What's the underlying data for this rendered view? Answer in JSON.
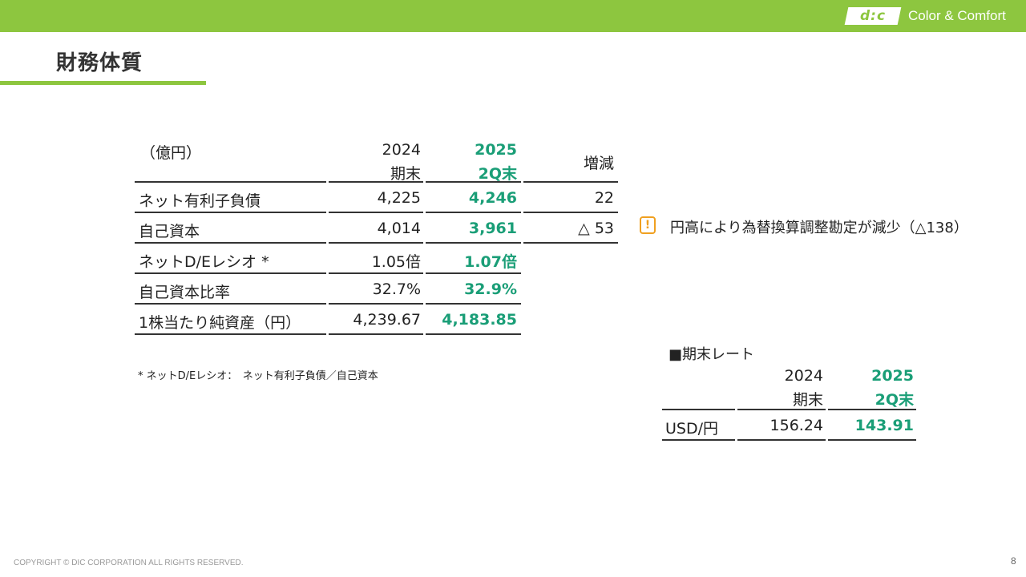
{
  "header": {
    "logo_text": "d:c",
    "tagline": "Color & Comfort",
    "title": "財務体質"
  },
  "main_table": {
    "unit": "（億円）",
    "col_prev": {
      "line1": "2024",
      "line2": "期末"
    },
    "col_curr": {
      "line1": "2025",
      "line2": "2Q末"
    },
    "col_diff": "増減",
    "rows": [
      {
        "label": "ネット有利子負債",
        "prev": "4,225",
        "curr": "4,246",
        "diff": "22"
      },
      {
        "label": "自己資本",
        "prev": "4,014",
        "curr": "3,961",
        "diff": "△ 53"
      },
      {
        "label": "ネットD/Eレシオ *",
        "prev": "1.05倍",
        "curr": "1.07倍",
        "diff": ""
      },
      {
        "label": "自己資本比率",
        "prev": "32.7%",
        "curr": "32.9%",
        "diff": ""
      },
      {
        "label": "1株当たり純資産（円）",
        "prev": "4,239.67",
        "curr": "4,183.85",
        "diff": ""
      }
    ],
    "footnote": "*  ネットD/Eレシオ：　ネット有利子負債／自己資本"
  },
  "note": {
    "icon": "exclamation-icon",
    "text": "円高により為替換算調整勘定が減少（△138）"
  },
  "rate_table": {
    "title": "■期末レート",
    "col_prev": {
      "line1": "2024",
      "line2": "期末"
    },
    "col_curr": {
      "line1": "2025",
      "line2": "2Q末"
    },
    "rows": [
      {
        "label": "USD/円",
        "prev": "156.24",
        "curr": "143.91"
      }
    ]
  },
  "footer": {
    "copyright": "COPYRIGHT © DIC CORPORATION ALL RIGHTS RESERVED.",
    "page_number": "8"
  },
  "colors": {
    "brand_green": "#8dc63f",
    "highlight_teal": "#1a9e77",
    "warning_orange": "#f0a020"
  }
}
